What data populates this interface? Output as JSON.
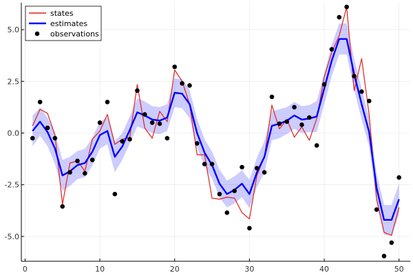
{
  "chart_data": {
    "type": "line",
    "title": "",
    "xlabel": "",
    "ylabel": "",
    "xlim": [
      -0.5,
      51.5
    ],
    "ylim": [
      -6.2,
      6.3
    ],
    "grid": true,
    "legend_position": "top-left",
    "x_ticks": [
      0,
      10,
      20,
      30,
      40,
      50
    ],
    "x_tick_labels": [
      "0",
      "10",
      "20",
      "30",
      "40",
      "50"
    ],
    "y_ticks": [
      -5,
      -2.5,
      0,
      2.5,
      5
    ],
    "y_tick_labels": [
      "-5.0",
      "-2.5",
      "0.0",
      "2.5",
      "5.0"
    ],
    "band": {
      "color": "#0000ff",
      "opacity": 0.2,
      "half_width": [
        0.75,
        0.68,
        0.68,
        0.75,
        0.75,
        0.7,
        0.68,
        0.68,
        0.68,
        0.65,
        0.65,
        0.75,
        0.65,
        0.65,
        0.68,
        0.68,
        0.65,
        0.65,
        0.65,
        0.7,
        0.7,
        0.68,
        0.68,
        0.65,
        0.65,
        0.68,
        0.65,
        0.65,
        0.65,
        0.68,
        0.72,
        0.75,
        0.7,
        0.7,
        0.65,
        0.65,
        0.65,
        0.65,
        0.75,
        0.75,
        0.75,
        0.75,
        0.75,
        0.75,
        0.75,
        0.7,
        0.7,
        0.72,
        0.72,
        0.75
      ]
    },
    "series": [
      {
        "name": "states",
        "color": "#e0201b",
        "kind": "line",
        "x": [
          1,
          2,
          3,
          4,
          5,
          6,
          7,
          8,
          9,
          10,
          11,
          12,
          13,
          14,
          15,
          16,
          17,
          18,
          19,
          20,
          21,
          22,
          23,
          24,
          25,
          26,
          27,
          28,
          29,
          30,
          31,
          32,
          33,
          34,
          35,
          36,
          37,
          38,
          39,
          40,
          41,
          42,
          43,
          44,
          45,
          46,
          47,
          48,
          49,
          50
        ],
        "values": [
          0.35,
          1.15,
          0.95,
          -0.1,
          -3.45,
          -1.45,
          -1.35,
          -1.85,
          -0.3,
          0.1,
          0.9,
          -0.55,
          -0.3,
          -0.2,
          2.35,
          0.25,
          -0.25,
          1.05,
          0.55,
          3.05,
          2.5,
          1.4,
          -1.05,
          -1.05,
          -3.15,
          -3.2,
          -3.1,
          -3.15,
          -3.85,
          -4.15,
          -2.05,
          -1.15,
          1.35,
          0.2,
          0.65,
          -0.2,
          0.3,
          -0.35,
          0.7,
          2.7,
          3.9,
          4.7,
          6.1,
          2.05,
          3.6,
          0.9,
          -3.2,
          -4.8,
          -4.95,
          -3.6
        ]
      },
      {
        "name": "estimates",
        "color": "#0000ff",
        "kind": "line",
        "x": [
          1,
          2,
          3,
          4,
          5,
          6,
          7,
          8,
          9,
          10,
          11,
          12,
          13,
          14,
          15,
          16,
          17,
          18,
          19,
          20,
          21,
          22,
          23,
          24,
          25,
          26,
          27,
          28,
          29,
          30,
          31,
          32,
          33,
          34,
          35,
          36,
          37,
          38,
          39,
          40,
          41,
          42,
          43,
          44,
          45,
          46,
          47,
          48,
          49,
          50
        ],
        "values": [
          0.1,
          0.55,
          0.05,
          -0.75,
          -2.05,
          -1.85,
          -1.55,
          -1.45,
          -0.9,
          -0.1,
          0.1,
          -1.15,
          -0.65,
          0.15,
          1.0,
          0.85,
          0.65,
          0.6,
          0.75,
          1.95,
          1.9,
          1.4,
          0.0,
          -0.95,
          -1.55,
          -2.45,
          -2.95,
          -2.75,
          -2.45,
          -2.95,
          -1.9,
          -1.15,
          0.35,
          0.45,
          0.6,
          0.85,
          0.65,
          0.7,
          0.8,
          2.15,
          3.5,
          4.55,
          4.55,
          2.85,
          1.4,
          0.05,
          -2.65,
          -4.2,
          -4.2,
          -3.2
        ]
      },
      {
        "name": "observations",
        "color": "#000000",
        "kind": "scatter",
        "x": [
          1,
          2,
          3,
          4,
          5,
          6,
          7,
          8,
          9,
          10,
          11,
          12,
          13,
          14,
          15,
          16,
          17,
          18,
          19,
          20,
          21,
          22,
          23,
          24,
          25,
          26,
          27,
          28,
          29,
          30,
          31,
          32,
          33,
          34,
          35,
          36,
          37,
          38,
          39,
          40,
          41,
          42,
          43,
          44,
          45,
          46,
          47,
          48,
          49,
          50
        ],
        "values": [
          -0.25,
          1.5,
          0.25,
          -0.25,
          -3.55,
          -1.9,
          -1.35,
          -1.95,
          -1.3,
          0.5,
          1.5,
          -2.95,
          -0.4,
          -0.3,
          2.05,
          0.9,
          0.5,
          0.45,
          -0.25,
          3.2,
          2.4,
          2.3,
          -0.5,
          -1.5,
          -1.5,
          -2.95,
          -3.85,
          -2.8,
          -1.65,
          -4.6,
          -1.7,
          -1.9,
          1.75,
          0.45,
          0.55,
          1.25,
          0.4,
          0.75,
          -0.6,
          2.35,
          4.05,
          5.6,
          6.1,
          2.75,
          2.0,
          1.55,
          -3.7,
          -5.95,
          -5.3,
          -2.15
        ]
      }
    ]
  }
}
